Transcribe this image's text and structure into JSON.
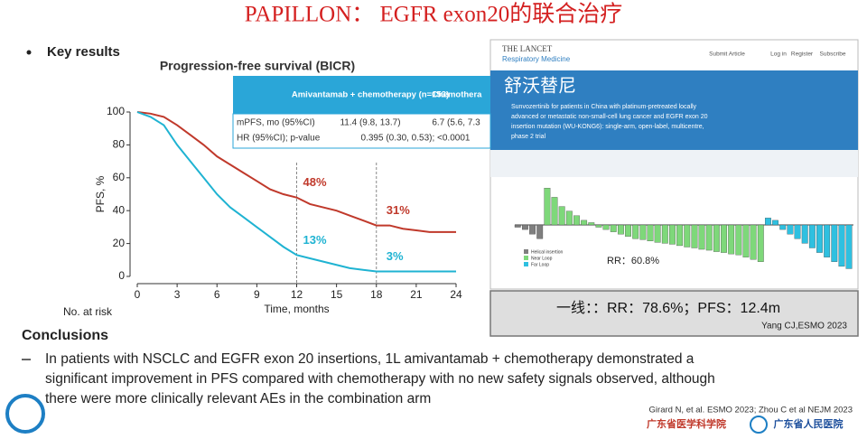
{
  "header": {
    "title": "PAPILLON： EGFR exon20的联合治疗"
  },
  "key_results": "Key results",
  "chart_data": [
    {
      "type": "line",
      "title": "Progression-free survival (BICR)",
      "x_label": "Time, months",
      "y_label": "PFS, %",
      "x": [
        0,
        1,
        2,
        3,
        4,
        5,
        6,
        7,
        8,
        9,
        10,
        11,
        12,
        13,
        14,
        15,
        16,
        17,
        18,
        19,
        20,
        21,
        22,
        23,
        24
      ],
      "series": [
        {
          "name": "Amivantamab + chemotherapy",
          "color": "#c0392b",
          "values": [
            100,
            99,
            97,
            92,
            86,
            80,
            73,
            68,
            63,
            58,
            53,
            50,
            48,
            44,
            42,
            40,
            37,
            34,
            31,
            31,
            29,
            28,
            27,
            27,
            27
          ]
        },
        {
          "name": "Chemotherapy",
          "color": "#1fb3d2",
          "values": [
            100,
            97,
            92,
            80,
            70,
            60,
            50,
            42,
            36,
            30,
            24,
            18,
            13,
            11,
            9,
            7,
            5,
            4,
            3,
            3,
            3,
            3,
            3,
            3,
            3
          ]
        }
      ],
      "xlim": [
        0,
        24
      ],
      "xticks": [
        0,
        3,
        6,
        9,
        12,
        15,
        18,
        21,
        24
      ],
      "ylim": [
        0,
        100
      ],
      "yticks": [
        0,
        20,
        40,
        60,
        80,
        100
      ],
      "vlines": [
        12,
        18
      ],
      "annotations": [
        {
          "text": "48%",
          "x": 12,
          "y": 48,
          "color": "#c0392b"
        },
        {
          "text": "31%",
          "x": 18,
          "y": 31,
          "color": "#c0392b"
        },
        {
          "text": "13%",
          "x": 12,
          "y": 13,
          "color": "#1fb3d2"
        },
        {
          "text": "3%",
          "x": 18,
          "y": 3,
          "color": "#1fb3d2"
        }
      ],
      "risk_label": "No. at risk",
      "table": {
        "header": [
          "",
          "Amivantamab + chemotherapy (n=153)",
          "Chemothera"
        ],
        "rows": [
          [
            "mPFS, mo (95%CI)",
            "11.4 (9.8, 13.7)",
            "6.7 (5.6, 7.3"
          ],
          [
            "HR (95%CI); p-value",
            "0.395 (0.30, 0.53); <0.0001",
            ""
          ]
        ]
      }
    },
    {
      "type": "bar",
      "ylim": [
        -100,
        100
      ],
      "series": [
        {
          "name": "Helical insertion",
          "color": "#7f7f7f",
          "values": [
            -5,
            -10,
            -20,
            -30
          ]
        },
        {
          "name": "Near Loop",
          "color": "#7ed87a",
          "values": [
            80,
            60,
            40,
            30,
            20,
            10,
            5,
            -5,
            -10,
            -15,
            -20,
            -25,
            -30,
            -32,
            -35,
            -38,
            -40,
            -42,
            -45,
            -48,
            -50,
            -53,
            -55,
            -58,
            -60,
            -63,
            -65,
            -70,
            -75,
            -80
          ]
        },
        {
          "name": "Far Loop",
          "color": "#2fc0e0",
          "values": [
            15,
            10,
            -10,
            -20,
            -30,
            -40,
            -50,
            -60,
            -70,
            -80,
            -90,
            -95
          ]
        }
      ],
      "annotation": "RR：60.8%"
    }
  ],
  "lancet": {
    "brand": "THE LANCET",
    "journal": "Respiratory Medicine",
    "nav": [
      "Submit Article",
      "Log in",
      "Register",
      "Subscribe"
    ],
    "drug": "舒沃替尼",
    "abstract": [
      "Sunvozertinib for patients in China with platinum-pretreated locally",
      "advanced or metastatic non-small-cell lung cancer and EGFR exon 20",
      "insertion mutation (WU-KONG6): single-arm, open-label, multicentre,",
      "phase 2 trial"
    ]
  },
  "callout": {
    "text": "一线：：RR：78.6%；PFS：12.4m",
    "source": "Yang CJ,ESMO 2023"
  },
  "conclusions": {
    "heading": "Conclusions",
    "lines": [
      "In patients with NSCLC and EGFR exon 20 insertions, 1L amivantamab + chemotherapy demonstrated a",
      "significant improvement in PFS compared with chemotherapy with no new safety signals observed, although",
      "there were more clinically relevant AEs in the combination arm"
    ]
  },
  "citation": "Girard N, et al. ESMO 2023; Zhou C et al NEJM 2023",
  "logos": [
    "广东省医学科学院",
    "广东省人民医院"
  ]
}
